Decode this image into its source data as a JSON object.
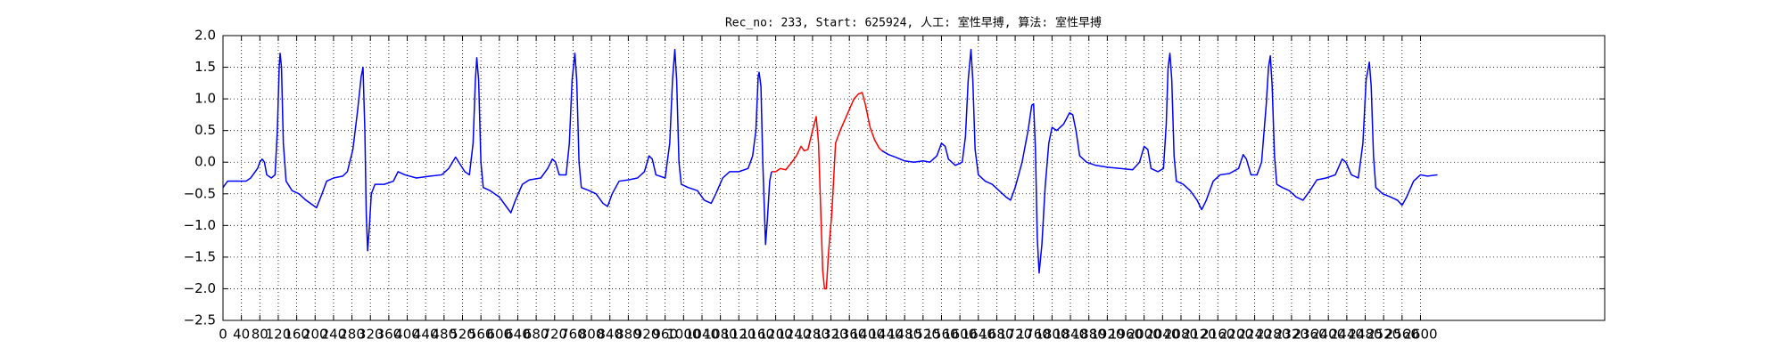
{
  "chart_data": {
    "type": "line",
    "title": "Rec_no: 233, Start: 625924, 人工: 室性早搏, 算法: 室性早搏",
    "xlim": [
      0,
      3000
    ],
    "ylim": [
      -2.5,
      2.0
    ],
    "grid": true,
    "xticks": [
      0,
      40,
      80,
      120,
      160,
      200,
      240,
      280,
      320,
      360,
      400,
      440,
      480,
      520,
      560,
      600,
      640,
      680,
      720,
      760,
      800,
      840,
      880,
      920,
      960,
      1000,
      1040,
      1080,
      1120,
      1160,
      1200,
      1240,
      1280,
      1320,
      1360,
      1400,
      1440,
      1480,
      1520,
      1560,
      1600,
      1640,
      1680,
      1720,
      1760,
      1800,
      1840,
      1880,
      1920,
      1960,
      2000,
      2040,
      2080,
      2120,
      2160,
      2200,
      2240,
      2280,
      2320,
      2360,
      2400,
      2440,
      2480,
      2520,
      2560,
      2600
    ],
    "yticks": [
      {
        "value": 2.0,
        "label": "2.0"
      },
      1.5,
      {
        "value": 1.0,
        "label": "1.0"
      },
      0.5,
      {
        "value": 0.0,
        "label": "0.0"
      },
      {
        "value": -0.5,
        "label": "−0.5"
      },
      {
        "value": -1.0,
        "label": "−1.0"
      },
      {
        "value": -1.5,
        "label": "−1.5"
      },
      {
        "value": -2.0,
        "label": "−2.0"
      },
      {
        "value": -2.5,
        "label": "−2.5"
      }
    ],
    "series": [
      {
        "color": "#0000ff",
        "x": [
          0,
          10,
          30,
          50,
          60,
          75,
          80,
          85,
          90,
          95,
          105,
          113,
          118,
          122,
          124,
          127,
          131,
          137,
          150,
          165,
          180,
          203,
          215,
          225,
          240,
          260,
          270,
          282,
          292,
          300,
          304,
          308,
          311,
          314,
          318,
          322,
          330,
          350,
          370,
          380,
          395,
          420,
          450,
          475,
          490,
          505,
          512,
          525,
          535,
          543,
          548,
          551,
          555,
          560,
          565,
          580,
          600,
          615,
          625,
          635,
          650,
          665,
          690,
          705,
          715,
          722,
          730,
          745,
          752,
          758,
          764,
          768,
          773,
          778,
          795,
          810,
          825,
          835,
          845,
          860,
          880,
          900,
          915,
          925,
          932,
          940,
          960,
          970,
          976,
          981,
          985,
          990,
          995,
          1010,
          1030,
          1045,
          1060,
          1070,
          1085,
          1100,
          1120,
          1140,
          1150,
          1157,
          1162,
          1164,
          1168,
          1172,
          1178,
          1182,
          1187,
          1191
        ],
        "values": [
          -0.4,
          -0.3,
          -0.3,
          -0.3,
          -0.25,
          -0.1,
          0.0,
          0.05,
          0.0,
          -0.2,
          -0.25,
          -0.2,
          0.5,
          1.5,
          1.72,
          1.5,
          0.3,
          -0.3,
          -0.45,
          -0.5,
          -0.6,
          -0.72,
          -0.5,
          -0.3,
          -0.25,
          -0.22,
          -0.15,
          0.2,
          0.8,
          1.35,
          1.5,
          0.5,
          -0.8,
          -1.4,
          -1.0,
          -0.5,
          -0.35,
          -0.35,
          -0.3,
          -0.15,
          -0.2,
          -0.25,
          -0.22,
          -0.2,
          -0.1,
          0.08,
          0.0,
          -0.15,
          -0.2,
          0.3,
          1.3,
          1.65,
          1.3,
          0.0,
          -0.4,
          -0.45,
          -0.55,
          -0.7,
          -0.8,
          -0.6,
          -0.35,
          -0.28,
          -0.25,
          -0.1,
          0.05,
          0.0,
          -0.2,
          -0.2,
          0.3,
          1.3,
          1.72,
          1.3,
          0.0,
          -0.4,
          -0.45,
          -0.5,
          -0.65,
          -0.7,
          -0.5,
          -0.3,
          -0.28,
          -0.25,
          -0.15,
          0.1,
          0.05,
          -0.2,
          -0.25,
          0.3,
          1.3,
          1.78,
          1.3,
          0.0,
          -0.35,
          -0.4,
          -0.45,
          -0.6,
          -0.65,
          -0.5,
          -0.25,
          -0.15,
          -0.15,
          -0.1,
          0.1,
          0.5,
          1.35,
          1.42,
          1.2,
          0.0,
          -1.3,
          -0.9,
          -0.3,
          -0.15
        ]
      },
      {
        "color": "#ff0000",
        "x": [
          1191,
          1200,
          1210,
          1222,
          1235,
          1245,
          1255,
          1262,
          1270,
          1280,
          1288,
          1293,
          1298,
          1302,
          1306,
          1310,
          1315,
          1322,
          1330,
          1340,
          1355,
          1370,
          1380,
          1388,
          1395,
          1405,
          1415,
          1425,
          1431
        ],
        "values": [
          -0.15,
          -0.15,
          -0.1,
          -0.12,
          0.0,
          0.1,
          0.25,
          0.18,
          0.2,
          0.5,
          0.72,
          0.3,
          -0.8,
          -1.7,
          -2.0,
          -2.0,
          -1.4,
          -0.8,
          0.3,
          0.5,
          0.75,
          1.0,
          1.08,
          1.1,
          0.9,
          0.55,
          0.35,
          0.22,
          0.18
        ]
      },
      {
        "color": "#0000ff",
        "x": [
          1431,
          1445,
          1460,
          1480,
          1500,
          1520,
          1535,
          1550,
          1560,
          1568,
          1575,
          1590,
          1605,
          1612,
          1618,
          1624,
          1628,
          1633,
          1640,
          1655,
          1670,
          1685,
          1700,
          1710,
          1720,
          1735,
          1748,
          1756,
          1760,
          1764,
          1768,
          1772,
          1778,
          1785,
          1793,
          1800,
          1810,
          1825,
          1838,
          1845,
          1852,
          1860,
          1875,
          1895,
          1920,
          1950,
          1975,
          1990,
          2000,
          2008,
          2015,
          2030,
          2042,
          2048,
          2052,
          2056,
          2060,
          2065,
          2070,
          2085,
          2100,
          2115,
          2125,
          2135,
          2150,
          2165,
          2185,
          2205,
          2215,
          2222,
          2232,
          2245,
          2255,
          2265,
          2270,
          2274,
          2278,
          2283,
          2288,
          2300,
          2315,
          2330,
          2345,
          2360,
          2375,
          2395,
          2415,
          2430,
          2438,
          2450,
          2465,
          2475,
          2482,
          2489,
          2493,
          2498,
          2503,
          2518,
          2535,
          2550,
          2560,
          2570,
          2585,
          2600,
          2615,
          2637
        ],
        "values": [
          0.18,
          0.12,
          0.08,
          0.02,
          0.0,
          0.02,
          0.0,
          0.1,
          0.3,
          0.25,
          0.05,
          -0.05,
          0.0,
          0.4,
          1.3,
          1.78,
          1.3,
          0.2,
          -0.2,
          -0.3,
          -0.35,
          -0.45,
          -0.55,
          -0.6,
          -0.4,
          0.0,
          0.5,
          0.9,
          0.92,
          0.2,
          -1.2,
          -1.75,
          -1.3,
          -0.4,
          0.3,
          0.55,
          0.5,
          0.6,
          0.78,
          0.75,
          0.5,
          0.1,
          0.0,
          -0.05,
          -0.08,
          -0.1,
          -0.12,
          0.0,
          0.25,
          0.2,
          -0.1,
          -0.15,
          -0.1,
          0.6,
          1.5,
          1.72,
          1.3,
          0.1,
          -0.3,
          -0.35,
          -0.45,
          -0.6,
          -0.75,
          -0.6,
          -0.3,
          -0.2,
          -0.18,
          -0.1,
          0.12,
          0.05,
          -0.2,
          -0.2,
          0.0,
          0.9,
          1.5,
          1.68,
          1.2,
          0.1,
          -0.35,
          -0.4,
          -0.45,
          -0.55,
          -0.6,
          -0.45,
          -0.28,
          -0.25,
          -0.2,
          0.05,
          0.0,
          -0.2,
          -0.25,
          0.3,
          1.3,
          1.58,
          1.2,
          0.1,
          -0.4,
          -0.5,
          -0.55,
          -0.6,
          -0.68,
          -0.55,
          -0.3,
          -0.2,
          -0.22,
          -0.2
        ]
      }
    ]
  }
}
